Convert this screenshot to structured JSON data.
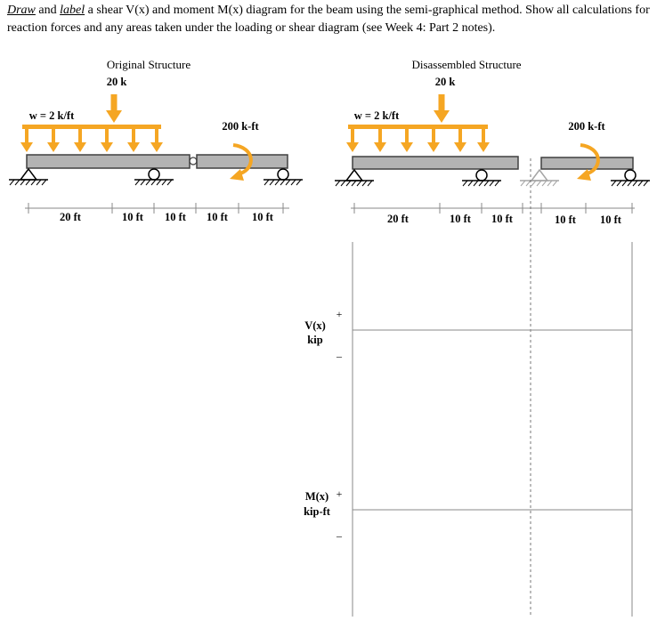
{
  "prompt": {
    "draw": "Draw",
    "and": "and",
    "label": "label",
    "rest": "a shear V(x) and moment M(x) diagram for the beam using the semi-graphical method. Show all calculations for reaction forces and any areas taken under the loading or shear diagram (see Week 4: Part 2 notes)."
  },
  "original": {
    "title": "Original Structure",
    "point_load": "20 k",
    "distributed_load": "w = 2 k/ft",
    "moment": "200 k-ft",
    "dims": [
      "20 ft",
      "10 ft",
      "10 ft",
      "10 ft",
      "10 ft"
    ]
  },
  "disassembled": {
    "title": "Disassembled Structure",
    "point_load": "20 k",
    "distributed_load": "w = 2 k/ft",
    "moment": "200 k-ft",
    "dims": [
      "20 ft",
      "10 ft",
      "10 ft",
      "10 ft",
      "10 ft"
    ]
  },
  "shear_axis": {
    "label": "V(x)",
    "unit": "kip",
    "plus": "+",
    "minus": "–"
  },
  "moment_axis": {
    "label": "M(x)",
    "unit": "kip-ft",
    "plus": "+",
    "minus": "–"
  },
  "colors": {
    "load": "#f5a623",
    "beam_fill": "#b3b3b3",
    "beam_stroke": "#404040",
    "ghost_support": "#bdbdbd"
  }
}
